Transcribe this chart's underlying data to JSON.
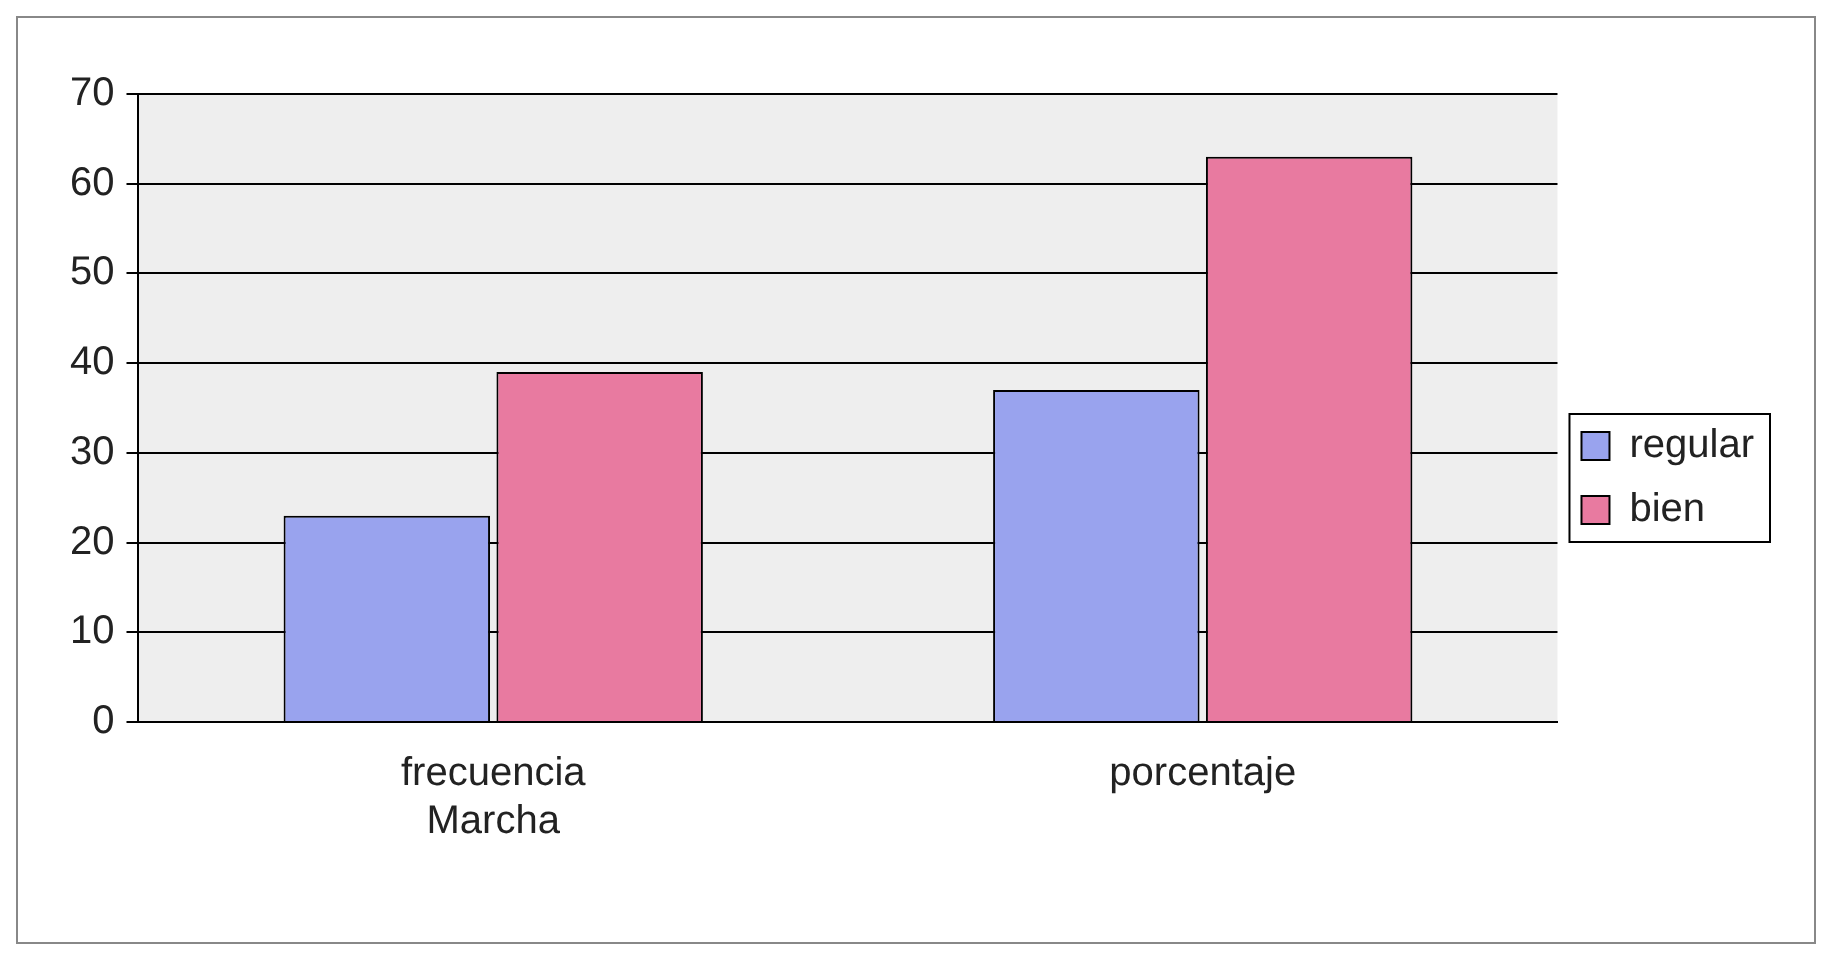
{
  "chart_data": {
    "type": "bar",
    "categories": [
      "frecuencia Marcha",
      "porcentaje"
    ],
    "series": [
      {
        "name": "regular",
        "color": "#99a3ee",
        "values": [
          23,
          37
        ]
      },
      {
        "name": "bien",
        "color": "#e87aa0",
        "values": [
          39,
          63
        ]
      }
    ],
    "ylim": [
      0,
      70
    ],
    "yticks": [
      0,
      10,
      20,
      30,
      40,
      50,
      60,
      70
    ],
    "grid": "y",
    "legend": "right"
  }
}
